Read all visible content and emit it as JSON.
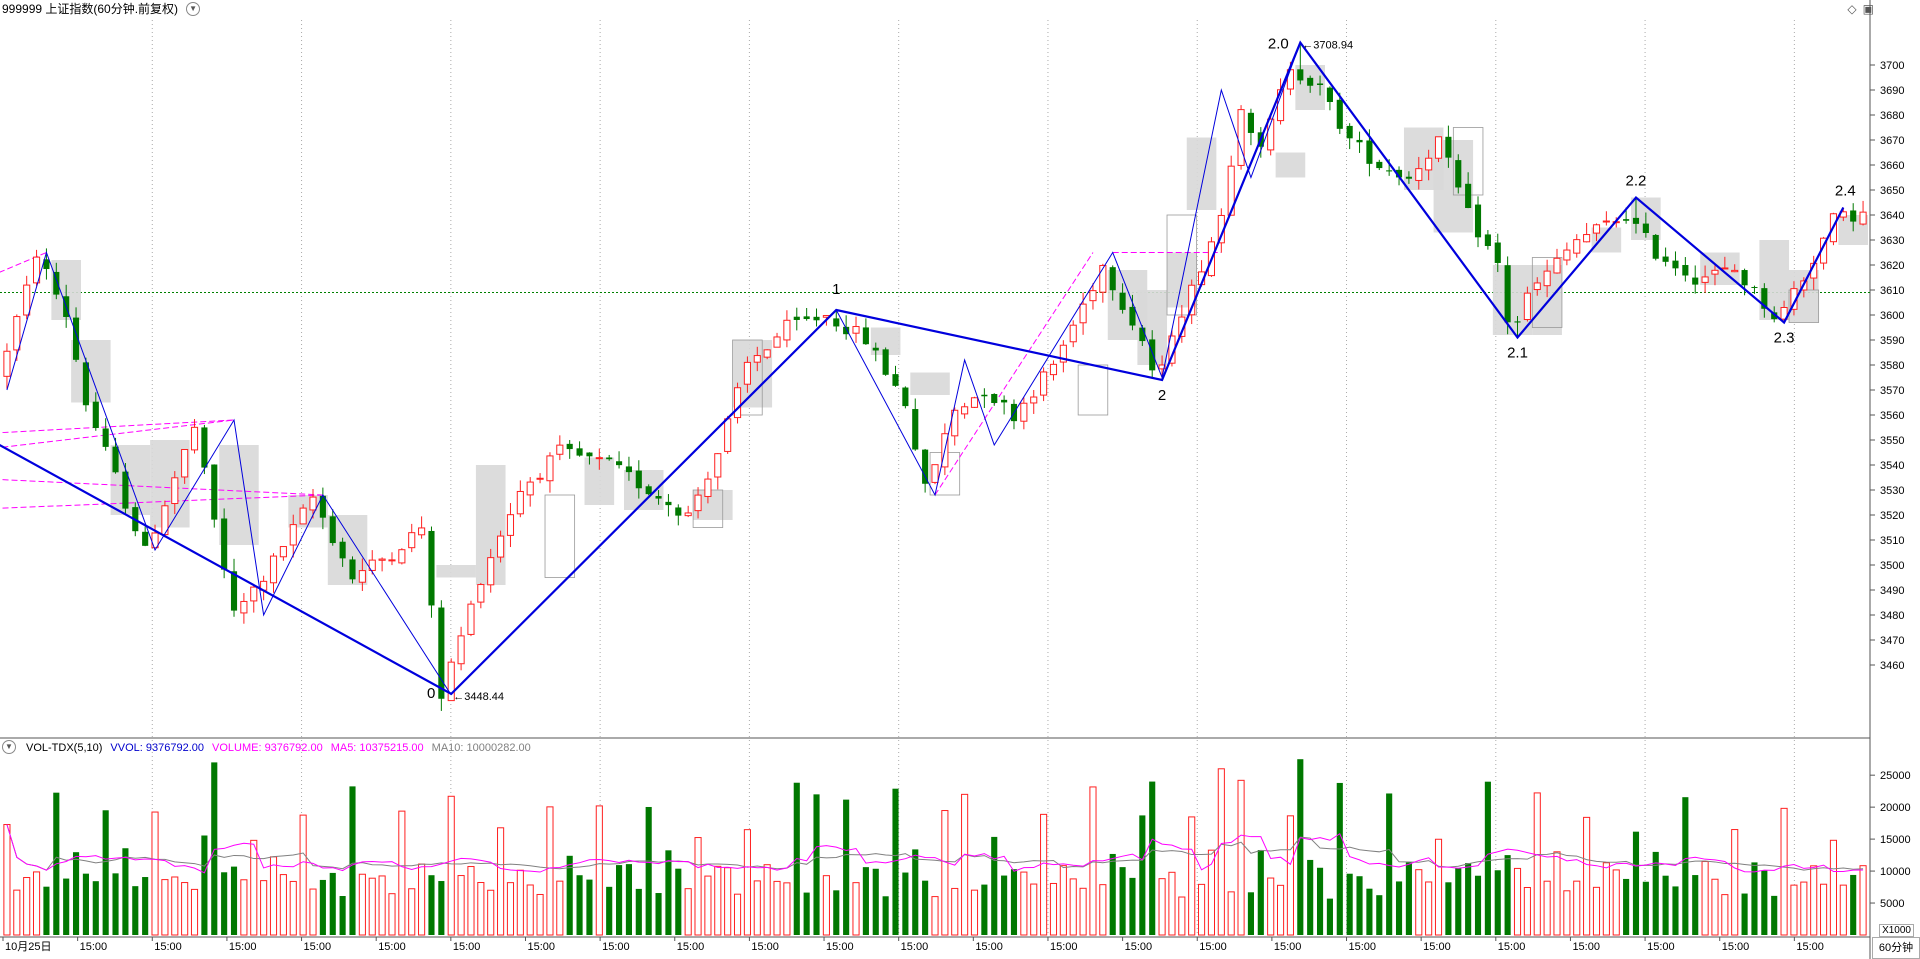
{
  "header": {
    "title": "999999 上证指数(60分钟.前复权)",
    "dropdown_icon": "chevron-down-icon"
  },
  "toolbar_icons": [
    "diamond-icon",
    "window-icon"
  ],
  "volume_header": {
    "indicator": "VOL-TDX(5,10)",
    "vvol": "VVOL: 9376792.00",
    "volume": "VOLUME: 9376792.00",
    "ma5": "MA5: 10375215.00",
    "ma10": "MA10: 10000282.00"
  },
  "period_label": "60分钟",
  "x1000_label": "X1000",
  "colors": {
    "up": "#ff2020",
    "down": "#007800",
    "wave": "#0000dd",
    "dashed_pink": "#ff00ff",
    "ma5": "#ff00ff",
    "ma10": "#808080",
    "hline": "#008000",
    "grid": "#aaaaaa"
  },
  "chart_data": [
    {
      "type": "candlestick",
      "title": "999999 上证指数(60分钟.前复权)",
      "ylim": [
        3442,
        3718
      ],
      "y_ticks": [
        3460,
        3470,
        3480,
        3490,
        3500,
        3510,
        3520,
        3530,
        3540,
        3550,
        3560,
        3570,
        3580,
        3590,
        3600,
        3610,
        3620,
        3630,
        3640,
        3650,
        3660,
        3670,
        3680,
        3690,
        3700
      ],
      "x_ticks": [
        "10月25日",
        "15:00",
        "15:00",
        "15:00",
        "15:00",
        "15:00",
        "15:00",
        "15:00",
        "15:00",
        "15:00",
        "15:00",
        "15:00",
        "15:00",
        "15:00",
        "15:00",
        "15:00",
        "15:00",
        "15:00",
        "15:00",
        "15:00",
        "15:00",
        "15:00",
        "15:00",
        "15:00",
        "15:00"
      ],
      "reference_line": 3609,
      "high_label": "3708.94",
      "low_label": "3448.44",
      "wave_points": [
        {
          "label": "0",
          "index": 45,
          "price": 3448.44
        },
        {
          "label": "1",
          "index": 84,
          "price": 3602
        },
        {
          "label": "2",
          "index": 117,
          "price": 3574
        },
        {
          "label": "2.0",
          "index": 131,
          "price": 3708.94
        },
        {
          "label": "2.1",
          "index": 153,
          "price": 3591
        },
        {
          "label": "2.2",
          "index": 165,
          "price": 3647
        },
        {
          "label": "2.3",
          "index": 180,
          "price": 3597
        },
        {
          "label": "2.4",
          "index": 186,
          "price": 3643
        }
      ],
      "wave_lead_in": {
        "start_price": 3549,
        "end_index": 45
      },
      "anchors": [
        [
          0,
          3575
        ],
        [
          3,
          3610
        ],
        [
          4,
          3625
        ],
        [
          7,
          3600
        ],
        [
          9,
          3565
        ],
        [
          11,
          3545
        ],
        [
          15,
          3505
        ],
        [
          20,
          3555
        ],
        [
          24,
          3480
        ],
        [
          27,
          3495
        ],
        [
          32,
          3527
        ],
        [
          36,
          3495
        ],
        [
          40,
          3505
        ],
        [
          43,
          3515
        ],
        [
          45,
          3448
        ],
        [
          49,
          3495
        ],
        [
          53,
          3530
        ],
        [
          57,
          3545
        ],
        [
          62,
          3540
        ],
        [
          66,
          3530
        ],
        [
          70,
          3520
        ],
        [
          73,
          3545
        ],
        [
          76,
          3580
        ],
        [
          80,
          3595
        ],
        [
          84,
          3600
        ],
        [
          88,
          3590
        ],
        [
          92,
          3565
        ],
        [
          94,
          3530
        ],
        [
          97,
          3562
        ],
        [
          100,
          3570
        ],
        [
          103,
          3560
        ],
        [
          107,
          3580
        ],
        [
          112,
          3620
        ],
        [
          116,
          3590
        ],
        [
          117,
          3578
        ],
        [
          121,
          3610
        ],
        [
          124,
          3640
        ],
        [
          126,
          3685
        ],
        [
          128,
          3665
        ],
        [
          131,
          3700
        ],
        [
          134,
          3690
        ],
        [
          137,
          3670
        ],
        [
          140,
          3660
        ],
        [
          143,
          3655
        ],
        [
          146,
          3670
        ],
        [
          149,
          3640
        ],
        [
          152,
          3620
        ],
        [
          153,
          3598
        ],
        [
          156,
          3612
        ],
        [
          160,
          3630
        ],
        [
          165,
          3640
        ],
        [
          168,
          3625
        ],
        [
          172,
          3615
        ],
        [
          176,
          3618
        ],
        [
          180,
          3600
        ],
        [
          183,
          3615
        ],
        [
          186,
          3638
        ],
        [
          188,
          3640
        ]
      ],
      "boxes": [
        {
          "i0": 5,
          "i1": 7,
          "lo": 3598,
          "hi": 3622
        },
        {
          "i0": 7,
          "i1": 10,
          "lo": 3565,
          "hi": 3590
        },
        {
          "i0": 11,
          "i1": 14,
          "lo": 3520,
          "hi": 3548
        },
        {
          "i0": 15,
          "i1": 18,
          "lo": 3515,
          "hi": 3550
        },
        {
          "i0": 22,
          "i1": 25,
          "lo": 3508,
          "hi": 3548
        },
        {
          "i0": 29,
          "i1": 32,
          "lo": 3515,
          "hi": 3528
        },
        {
          "i0": 33,
          "i1": 36,
          "lo": 3492,
          "hi": 3520
        },
        {
          "i0": 44,
          "i1": 47,
          "lo": 3495,
          "hi": 3500
        },
        {
          "i0": 48,
          "i1": 50,
          "lo": 3492,
          "hi": 3540
        },
        {
          "i0": 59,
          "i1": 61,
          "lo": 3524,
          "hi": 3543
        },
        {
          "i0": 63,
          "i1": 66,
          "lo": 3522,
          "hi": 3538
        },
        {
          "i0": 70,
          "i1": 73,
          "lo": 3518,
          "hi": 3530
        },
        {
          "i0": 74,
          "i1": 77,
          "lo": 3563,
          "hi": 3590
        },
        {
          "i0": 88,
          "i1": 90,
          "lo": 3584,
          "hi": 3595
        },
        {
          "i0": 92,
          "i1": 95,
          "lo": 3568,
          "hi": 3577
        },
        {
          "i0": 112,
          "i1": 115,
          "lo": 3590,
          "hi": 3618
        },
        {
          "i0": 115,
          "i1": 117,
          "lo": 3580,
          "hi": 3610
        },
        {
          "i0": 118,
          "i1": 120,
          "lo": 3603,
          "hi": 3625
        },
        {
          "i0": 120,
          "i1": 122,
          "lo": 3642,
          "hi": 3671
        },
        {
          "i0": 129,
          "i1": 131,
          "lo": 3655,
          "hi": 3665
        },
        {
          "i0": 131,
          "i1": 133,
          "lo": 3682,
          "hi": 3700
        },
        {
          "i0": 142,
          "i1": 145,
          "lo": 3650,
          "hi": 3675
        },
        {
          "i0": 145,
          "i1": 148,
          "lo": 3633,
          "hi": 3670
        },
        {
          "i0": 151,
          "i1": 154,
          "lo": 3592,
          "hi": 3620
        },
        {
          "i0": 155,
          "i1": 157,
          "lo": 3592,
          "hi": 3620
        },
        {
          "i0": 161,
          "i1": 163,
          "lo": 3625,
          "hi": 3635
        },
        {
          "i0": 165,
          "i1": 167,
          "lo": 3630,
          "hi": 3647
        },
        {
          "i0": 172,
          "i1": 175,
          "lo": 3612,
          "hi": 3625
        },
        {
          "i0": 178,
          "i1": 180,
          "lo": 3598,
          "hi": 3630
        },
        {
          "i0": 181,
          "i1": 183,
          "lo": 3597,
          "hi": 3618
        },
        {
          "i0": 186,
          "i1": 188,
          "lo": 3628,
          "hi": 3640
        }
      ],
      "pink_lines": [
        {
          "x0": -5,
          "y0": 3610,
          "x1": 4,
          "y1": 3625
        },
        {
          "x0": -5,
          "y0": 3545,
          "x1": 23,
          "y1": 3558
        },
        {
          "x0": -5,
          "y0": 3552,
          "x1": 23,
          "y1": 3558
        },
        {
          "x0": -5,
          "y0": 3522,
          "x1": 32,
          "y1": 3528
        },
        {
          "x0": -5,
          "y0": 3535,
          "x1": 32,
          "y1": 3528
        },
        {
          "x0": 94,
          "y0": 3528,
          "x1": 110,
          "y1": 3625
        },
        {
          "x0": 112,
          "y0": 3625,
          "x1": 123,
          "y1": 3625
        }
      ]
    },
    {
      "type": "bar",
      "title": "VOL-TDX(5,10)",
      "ylim": [
        0,
        28000
      ],
      "y_ticks": [
        5000,
        10000,
        15000,
        20000,
        25000
      ],
      "series": [
        {
          "name": "VOLUME"
        },
        {
          "name": "MA5"
        },
        {
          "name": "MA10"
        }
      ],
      "volume_pattern": [
        19500,
        8500,
        11000,
        9000,
        7500
      ],
      "volume_spikes": [
        {
          "i": 21,
          "v": 27000
        },
        {
          "i": 82,
          "v": 22000
        },
        {
          "i": 123,
          "v": 26000
        },
        {
          "i": 131,
          "v": 27500
        },
        {
          "i": 97,
          "v": 22000
        },
        {
          "i": 116,
          "v": 24000
        }
      ]
    }
  ]
}
